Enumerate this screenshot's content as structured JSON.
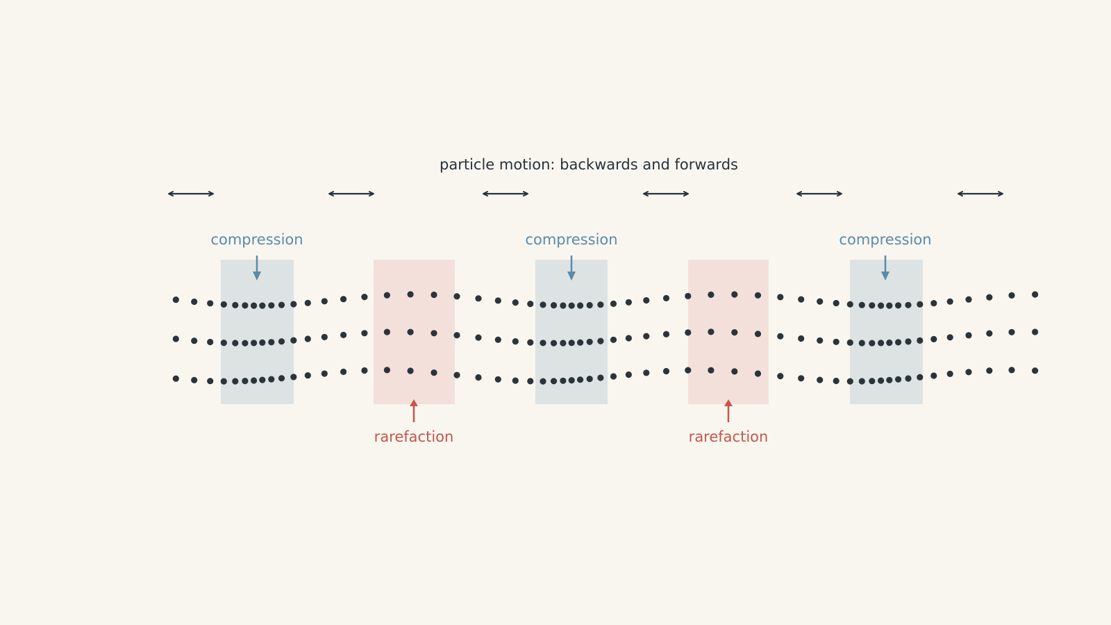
{
  "title": "particle motion: backwards and forwards",
  "motion_arrow_icon": "double-headed-arrow-icon",
  "motion_arrow_count": 6,
  "compression": {
    "label": "compression",
    "color": "#5a8ba8",
    "band_color": "#dde3e3",
    "arrow_icon": "down-arrow-icon",
    "labels": [
      "compression",
      "compression",
      "compression"
    ]
  },
  "rarefaction": {
    "label": "rarefaction",
    "color": "#c4564a",
    "band_color": "#f3e0db",
    "arrow_icon": "up-arrow-icon",
    "labels": [
      "rarefaction",
      "rarefaction"
    ]
  },
  "particles": {
    "rows": 3,
    "color": "#2b3439"
  }
}
